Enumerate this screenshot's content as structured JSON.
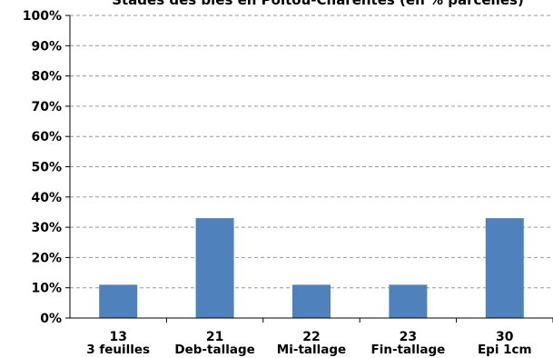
{
  "chart_data": {
    "type": "bar",
    "title": "Stades des blés en Poitou-Charentes (en % parcelles)",
    "categories": [
      {
        "code": "13",
        "name": "3 feuilles"
      },
      {
        "code": "21",
        "name": "Deb-tallage"
      },
      {
        "code": "22",
        "name": "Mi-tallage"
      },
      {
        "code": "23",
        "name": "Fin-tallage"
      },
      {
        "code": "30",
        "name": "Epi 1cm"
      }
    ],
    "values": [
      11,
      33,
      11,
      11,
      33
    ],
    "ylim": [
      0,
      100
    ],
    "yticks": [
      "0%",
      "10%",
      "20%",
      "30%",
      "40%",
      "50%",
      "60%",
      "70%",
      "80%",
      "90%",
      "100%"
    ],
    "grid": true,
    "bar_color": "#4f81bd",
    "grid_color": "#9a9a9a"
  }
}
